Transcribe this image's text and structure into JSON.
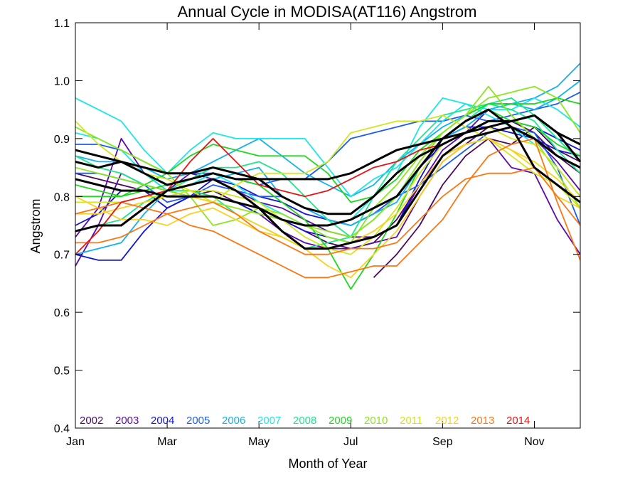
{
  "chart_data": {
    "type": "line",
    "title": "Annual Cycle in MODISA(AT116) Angstrom",
    "xlabel": "Month of Year",
    "ylabel": "Angstrom",
    "xlim": [
      1,
      12
    ],
    "ylim": [
      0.4,
      1.1
    ],
    "x_ticks": [
      {
        "value": 1,
        "label": "Jan"
      },
      {
        "value": 3,
        "label": "Mar"
      },
      {
        "value": 5,
        "label": "May"
      },
      {
        "value": 7,
        "label": "Jul"
      },
      {
        "value": 9,
        "label": "Sep"
      },
      {
        "value": 11,
        "label": "Nov"
      }
    ],
    "y_ticks": [
      {
        "value": 0.4,
        "label": "0.4"
      },
      {
        "value": 0.5,
        "label": "0.5"
      },
      {
        "value": 0.6,
        "label": "0.6"
      },
      {
        "value": 0.7,
        "label": "0.7"
      },
      {
        "value": 0.8,
        "label": "0.8"
      },
      {
        "value": 0.9,
        "label": "0.9"
      },
      {
        "value": 1.0,
        "label": "1.0"
      },
      {
        "value": 1.1,
        "label": "1.1"
      }
    ],
    "x": [
      1,
      1.5,
      2,
      2.5,
      3,
      3.5,
      4,
      4.5,
      5,
      5.5,
      6,
      6.5,
      7,
      7.5,
      8,
      8.5,
      9,
      9.5,
      10,
      10.5,
      11,
      11.5,
      12
    ],
    "grid": false,
    "legend_position": "bottom-left",
    "series": [
      {
        "name": "2002",
        "color": "#4b0a5e",
        "values": [
          null,
          null,
          null,
          null,
          null,
          null,
          null,
          null,
          null,
          null,
          null,
          null,
          null,
          0.66,
          0.7,
          0.75,
          0.82,
          0.87,
          0.9,
          0.89,
          0.92,
          0.88,
          0.86
        ]
      },
      {
        "name": "2002",
        "color": "#4b0a5e",
        "values": [
          0.84,
          0.83,
          0.82,
          0.81,
          0.8,
          0.8,
          0.81,
          0.79,
          0.78,
          0.76,
          0.74,
          0.72,
          0.71,
          0.72,
          0.76,
          0.82,
          0.87,
          0.89,
          0.92,
          0.93,
          0.91,
          0.87,
          0.84
        ]
      },
      {
        "name": "2003",
        "color": "#5b0aa8",
        "values": [
          0.73,
          0.78,
          0.9,
          0.84,
          0.81,
          0.8,
          0.8,
          0.79,
          0.77,
          0.74,
          0.72,
          0.71,
          0.71,
          0.72,
          0.73,
          0.8,
          0.86,
          0.89,
          0.9,
          0.85,
          0.84,
          0.76,
          0.7
        ]
      },
      {
        "name": "2003",
        "color": "#5b0aa8",
        "values": [
          0.68,
          0.75,
          0.84,
          0.82,
          0.81,
          0.84,
          0.83,
          0.81,
          0.79,
          0.78,
          0.76,
          0.74,
          0.73,
          0.73,
          0.75,
          0.82,
          0.88,
          0.91,
          0.95,
          0.92,
          0.9,
          0.86,
          0.81
        ]
      },
      {
        "name": "2004",
        "color": "#1414d6",
        "values": [
          0.7,
          0.69,
          0.69,
          0.74,
          0.78,
          0.8,
          0.8,
          0.79,
          0.77,
          0.76,
          0.74,
          0.73,
          0.72,
          0.73,
          0.75,
          0.83,
          0.9,
          0.92,
          0.92,
          0.91,
          0.9,
          0.88,
          0.87
        ]
      },
      {
        "name": "2004",
        "color": "#1414d6",
        "values": [
          0.75,
          0.77,
          0.81,
          0.81,
          0.78,
          0.8,
          0.83,
          0.82,
          0.8,
          0.79,
          0.77,
          0.76,
          0.75,
          0.77,
          0.8,
          0.85,
          0.89,
          0.91,
          0.93,
          0.93,
          0.92,
          0.9,
          0.88
        ]
      },
      {
        "name": "2005",
        "color": "#1e5cf0",
        "values": [
          0.89,
          0.89,
          0.88,
          0.86,
          0.84,
          0.84,
          0.84,
          0.83,
          0.82,
          0.83,
          0.83,
          0.86,
          0.9,
          0.91,
          0.92,
          0.93,
          0.93,
          0.94,
          0.93,
          0.94,
          0.95,
          0.96,
          0.98
        ]
      },
      {
        "name": "2005",
        "color": "#1e5cf0",
        "values": [
          0.84,
          0.84,
          0.83,
          0.82,
          0.79,
          0.8,
          0.82,
          0.81,
          0.8,
          0.8,
          0.78,
          0.76,
          0.75,
          0.77,
          0.8,
          0.82,
          0.85,
          0.88,
          0.91,
          0.92,
          0.91,
          0.85,
          0.75
        ]
      },
      {
        "name": "2006",
        "color": "#14b0f0",
        "values": [
          0.87,
          0.86,
          0.86,
          0.85,
          0.83,
          0.84,
          0.86,
          0.88,
          0.9,
          0.87,
          0.84,
          0.82,
          0.8,
          0.82,
          0.86,
          0.89,
          0.92,
          0.94,
          0.96,
          0.96,
          0.97,
          0.99,
          1.03
        ]
      },
      {
        "name": "2006",
        "color": "#14b0f0",
        "values": [
          0.7,
          0.71,
          0.72,
          0.77,
          0.81,
          0.82,
          0.83,
          0.84,
          0.85,
          0.8,
          0.78,
          0.76,
          0.75,
          0.77,
          0.79,
          0.85,
          0.9,
          0.92,
          0.95,
          0.96,
          0.95,
          0.97,
          1.0
        ]
      },
      {
        "name": "2007",
        "color": "#1ee6e6",
        "values": [
          0.97,
          0.95,
          0.93,
          0.88,
          0.84,
          0.88,
          0.91,
          0.9,
          0.9,
          0.9,
          0.9,
          0.85,
          0.8,
          0.83,
          0.85,
          0.89,
          0.93,
          0.96,
          0.95,
          0.95,
          0.97,
          0.95,
          0.92
        ]
      },
      {
        "name": "2007",
        "color": "#1ee6e6",
        "values": [
          0.91,
          0.9,
          0.88,
          0.84,
          0.81,
          0.82,
          0.84,
          0.82,
          0.79,
          0.77,
          0.75,
          0.75,
          0.76,
          0.8,
          0.84,
          0.92,
          0.97,
          0.96,
          0.94,
          0.92,
          0.89,
          0.85,
          0.8
        ]
      },
      {
        "name": "2008",
        "color": "#1ee68c",
        "values": [
          0.87,
          0.85,
          0.84,
          0.82,
          0.81,
          0.83,
          0.85,
          0.85,
          0.86,
          0.84,
          0.8,
          0.76,
          0.73,
          0.8,
          0.86,
          0.9,
          0.94,
          0.95,
          0.96,
          0.97,
          0.94,
          0.9,
          0.86
        ]
      },
      {
        "name": "2008",
        "color": "#1ee68c",
        "values": [
          0.74,
          0.75,
          0.76,
          0.79,
          0.81,
          0.81,
          0.8,
          0.77,
          0.75,
          0.73,
          0.71,
          0.72,
          0.73,
          0.76,
          0.8,
          0.85,
          0.9,
          0.93,
          0.96,
          0.95,
          0.93,
          0.88,
          0.84
        ]
      },
      {
        "name": "2009",
        "color": "#1ed81e",
        "values": [
          0.8,
          0.8,
          0.8,
          0.81,
          0.82,
          0.83,
          0.84,
          0.83,
          0.82,
          0.79,
          0.76,
          0.71,
          0.64,
          0.7,
          0.77,
          0.85,
          0.9,
          0.93,
          0.95,
          0.93,
          0.92,
          0.89,
          0.87
        ]
      },
      {
        "name": "2009",
        "color": "#1ed81e",
        "values": [
          0.82,
          0.81,
          0.8,
          0.82,
          0.84,
          0.87,
          0.89,
          0.88,
          0.87,
          0.87,
          0.87,
          0.84,
          0.79,
          0.8,
          0.83,
          0.88,
          0.91,
          0.94,
          0.96,
          0.96,
          0.96,
          0.97,
          0.96
        ]
      },
      {
        "name": "2010",
        "color": "#8ce61e",
        "values": [
          0.92,
          0.9,
          0.88,
          0.86,
          0.84,
          0.8,
          0.75,
          0.76,
          0.78,
          0.77,
          0.75,
          0.73,
          0.72,
          0.78,
          0.82,
          0.87,
          0.91,
          0.94,
          0.99,
          0.94,
          0.9,
          0.84,
          0.78
        ]
      },
      {
        "name": "2010",
        "color": "#8ce61e",
        "values": [
          0.85,
          0.84,
          0.83,
          0.82,
          0.81,
          0.8,
          0.79,
          0.78,
          0.77,
          0.76,
          0.75,
          0.74,
          0.73,
          0.76,
          0.8,
          0.86,
          0.91,
          0.94,
          0.97,
          0.98,
          0.99,
          0.97,
          0.91
        ]
      },
      {
        "name": "2011",
        "color": "#d2e61e",
        "values": [
          0.93,
          0.89,
          0.86,
          0.84,
          0.83,
          0.81,
          0.79,
          0.82,
          0.84,
          0.84,
          0.84,
          0.86,
          0.91,
          0.92,
          0.93,
          0.93,
          0.94,
          0.92,
          0.9,
          0.87,
          0.84,
          0.82,
          0.78
        ]
      },
      {
        "name": "2011",
        "color": "#d2e61e",
        "values": [
          0.79,
          0.79,
          0.79,
          0.8,
          0.8,
          0.81,
          0.81,
          0.8,
          0.79,
          0.76,
          0.73,
          0.71,
          0.7,
          0.73,
          0.78,
          0.84,
          0.89,
          0.91,
          0.92,
          0.9,
          0.89,
          0.85,
          0.8
        ]
      },
      {
        "name": "2012",
        "color": "#fad21e",
        "values": [
          0.8,
          0.78,
          0.76,
          0.76,
          0.75,
          0.77,
          0.78,
          0.76,
          0.74,
          0.73,
          0.71,
          0.68,
          0.66,
          0.7,
          0.74,
          0.8,
          0.86,
          0.89,
          0.9,
          0.88,
          0.85,
          0.8,
          0.78
        ]
      },
      {
        "name": "2012",
        "color": "#fad21e",
        "values": [
          0.77,
          0.77,
          0.78,
          0.79,
          0.8,
          0.8,
          0.79,
          0.77,
          0.75,
          0.73,
          0.71,
          0.71,
          0.72,
          0.74,
          0.77,
          0.82,
          0.87,
          0.89,
          0.9,
          0.88,
          0.86,
          0.83,
          0.79
        ]
      },
      {
        "name": "2013",
        "color": "#fa7814",
        "values": [
          0.72,
          0.72,
          0.73,
          0.75,
          0.77,
          0.75,
          0.74,
          0.72,
          0.7,
          0.68,
          0.66,
          0.66,
          0.67,
          0.68,
          0.68,
          0.72,
          0.76,
          0.82,
          0.87,
          0.89,
          0.9,
          0.79,
          0.69
        ]
      },
      {
        "name": "2013",
        "color": "#fa7814",
        "values": [
          0.77,
          0.78,
          0.79,
          0.78,
          0.77,
          0.78,
          0.79,
          0.77,
          0.74,
          0.72,
          0.7,
          0.7,
          0.71,
          0.71,
          0.72,
          0.76,
          0.8,
          0.83,
          0.84,
          0.84,
          0.85,
          0.8,
          0.75
        ]
      },
      {
        "name": "2014",
        "color": "#e61414",
        "values": [
          0.7,
          0.74,
          0.79,
          0.8,
          0.81,
          0.86,
          0.9,
          0.86,
          0.82,
          0.81,
          0.8,
          0.81,
          0.83,
          0.85,
          0.86,
          0.88,
          0.89,
          null,
          null,
          null,
          null,
          null,
          null
        ]
      },
      {
        "name": "",
        "color": "#000000",
        "bold": true,
        "values": [
          0.88,
          0.87,
          0.86,
          0.84,
          0.82,
          0.83,
          0.84,
          0.83,
          0.83,
          0.83,
          0.83,
          0.83,
          0.84,
          0.86,
          0.88,
          0.89,
          0.9,
          0.91,
          0.93,
          0.93,
          0.94,
          0.91,
          0.89
        ]
      },
      {
        "name": "",
        "color": "#000000",
        "bold": true,
        "values": [
          0.74,
          0.75,
          0.75,
          0.78,
          0.81,
          0.82,
          0.83,
          0.81,
          0.78,
          0.74,
          0.71,
          0.71,
          0.72,
          0.73,
          0.75,
          0.81,
          0.87,
          0.9,
          0.91,
          0.92,
          0.85,
          0.82,
          0.79
        ]
      },
      {
        "name": "",
        "color": "#000000",
        "bold": true,
        "values": [
          0.83,
          0.82,
          0.81,
          0.81,
          0.8,
          0.8,
          0.8,
          0.79,
          0.78,
          0.76,
          0.75,
          0.75,
          0.76,
          0.78,
          0.8,
          0.85,
          0.9,
          0.93,
          0.95,
          0.92,
          0.9,
          0.87,
          0.85
        ]
      },
      {
        "name": "",
        "color": "#000000",
        "bold": true,
        "values": [
          0.86,
          0.85,
          0.86,
          0.85,
          0.84,
          0.84,
          0.85,
          0.84,
          0.83,
          0.8,
          0.78,
          0.77,
          0.77,
          0.8,
          0.84,
          0.87,
          0.89,
          0.91,
          0.92,
          0.93,
          0.94,
          0.91,
          0.86
        ]
      }
    ],
    "legend": [
      {
        "label": "2002",
        "color": "#4b0a5e"
      },
      {
        "label": "2003",
        "color": "#5b0aa8"
      },
      {
        "label": "2004",
        "color": "#1414d6"
      },
      {
        "label": "2005",
        "color": "#1e5cf0"
      },
      {
        "label": "2006",
        "color": "#14b0f0"
      },
      {
        "label": "2007",
        "color": "#1ee6e6"
      },
      {
        "label": "2008",
        "color": "#1ee68c"
      },
      {
        "label": "2009",
        "color": "#1ed81e"
      },
      {
        "label": "2010",
        "color": "#8ce61e"
      },
      {
        "label": "2011",
        "color": "#d2e61e"
      },
      {
        "label": "2012",
        "color": "#fad21e"
      },
      {
        "label": "2013",
        "color": "#fa7814"
      },
      {
        "label": "2014",
        "color": "#e61414"
      }
    ]
  }
}
